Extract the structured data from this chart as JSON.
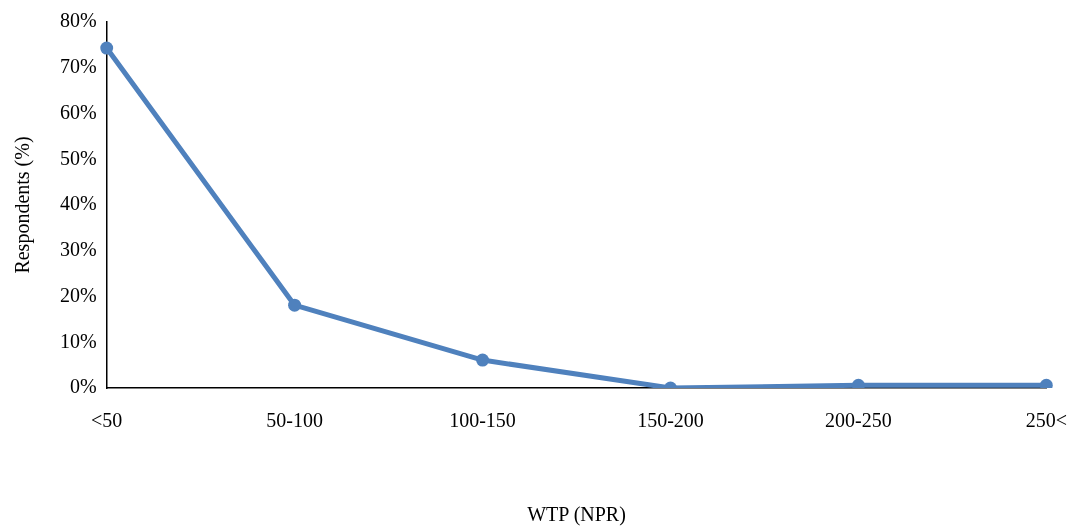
{
  "chart_data": {
    "type": "line",
    "xlabel": "WTP (NPR)",
    "ylabel": "Respondents (%)",
    "categories": [
      "<50",
      "50-100",
      "100-150",
      "150-200",
      "200-250",
      "250<"
    ],
    "series": [
      {
        "color": "#4f81bd",
        "values": [
          74.3,
          18.1,
          6.1,
          0,
          0.6,
          0.6
        ]
      }
    ],
    "ylim": [
      0,
      80
    ],
    "yticks": [
      {
        "value": 0,
        "label": "0%"
      },
      {
        "value": 10,
        "label": "10%"
      },
      {
        "value": 20,
        "label": "20%"
      },
      {
        "value": 30,
        "label": "30%"
      },
      {
        "value": 40,
        "label": "40%"
      },
      {
        "value": 50,
        "label": "50%"
      },
      {
        "value": 60,
        "label": "60%"
      },
      {
        "value": 70,
        "label": "70%"
      },
      {
        "value": 80,
        "label": "80%"
      }
    ],
    "grid": false,
    "legend": false,
    "marker": "circle",
    "line_style": "solid"
  }
}
